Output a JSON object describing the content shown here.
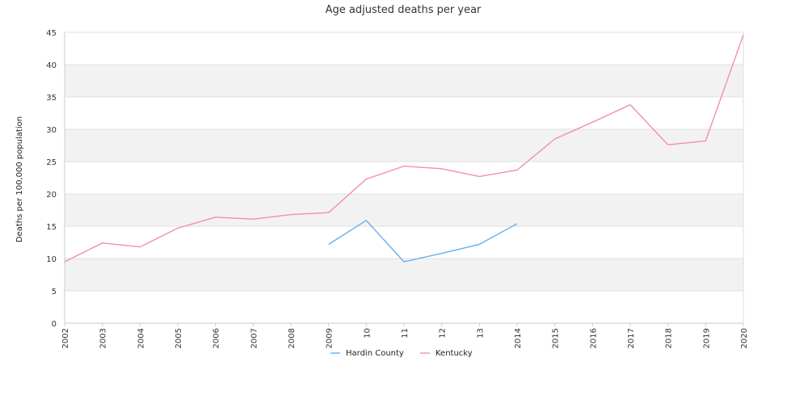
{
  "chart_data": {
    "type": "line",
    "title": "Age adjusted deaths per year",
    "xlabel": "",
    "ylabel": "Deaths per 100,000 population",
    "ylim": [
      0,
      45
    ],
    "yticks": [
      0,
      5,
      10,
      15,
      20,
      25,
      30,
      35,
      40,
      45
    ],
    "x": [
      "2002",
      "2003",
      "2004",
      "2005",
      "2006",
      "2007",
      "2008",
      "2009",
      "2010",
      "2011",
      "2012",
      "2013",
      "2014",
      "2015",
      "2016",
      "2017",
      "2018",
      "2019",
      "2020"
    ],
    "xtick_labels": [
      "2002",
      "2003",
      "2004",
      "2005",
      "2006",
      "2007",
      "2008",
      "2009",
      "10",
      "11",
      "12",
      "13",
      "2014",
      "2015",
      "2016",
      "2017",
      "2018",
      "2019",
      "2020"
    ],
    "grid": "horizontal alternating bands",
    "legend_position": "bottom",
    "series": [
      {
        "name": "Hardin County",
        "color": "#6aaee8",
        "values": [
          null,
          null,
          null,
          null,
          null,
          null,
          null,
          12.2,
          15.9,
          9.5,
          10.8,
          12.2,
          15.4,
          null,
          null,
          null,
          null,
          null,
          null
        ]
      },
      {
        "name": "Kentucky",
        "color": "#f08cbe",
        "values": [
          9.5,
          12.4,
          11.8,
          14.7,
          16.4,
          16.1,
          16.8,
          17.1,
          22.3,
          24.3,
          23.9,
          22.7,
          23.7,
          28.5,
          31.1,
          33.8,
          27.6,
          28.2,
          44.6
        ]
      }
    ]
  }
}
